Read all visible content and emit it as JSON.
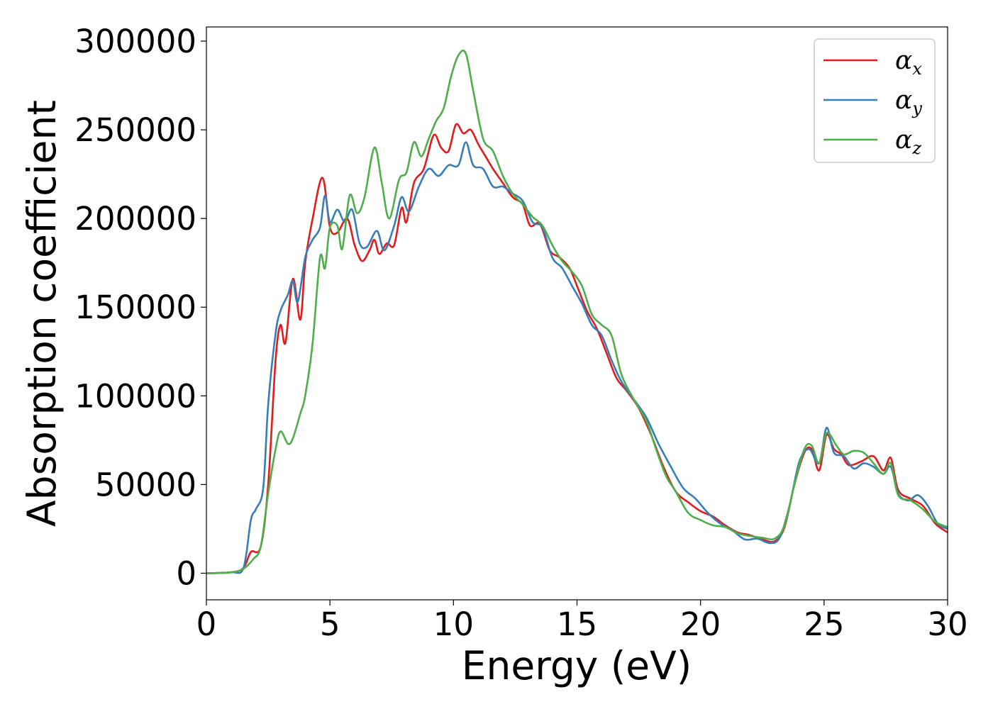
{
  "chart_data": {
    "type": "line",
    "title": "",
    "xlabel": "Energy (eV)",
    "ylabel": "Absorption coefficient",
    "xlim": [
      0,
      30
    ],
    "ylim": [
      -15000,
      308000
    ],
    "xticks": [
      0,
      5,
      10,
      15,
      20,
      25,
      30
    ],
    "yticks": [
      0,
      50000,
      100000,
      150000,
      200000,
      250000,
      300000
    ],
    "xtick_labels": [
      "0",
      "5",
      "10",
      "15",
      "20",
      "25",
      "30"
    ],
    "ytick_labels": [
      "0",
      "50000",
      "100000",
      "150000",
      "200000",
      "250000",
      "300000"
    ],
    "grid": false,
    "legend": {
      "position": "top-right"
    },
    "series": [
      {
        "name": "αx",
        "symbol": "α",
        "subscript": "x",
        "color": "#e41a1c",
        "points": [
          [
            0,
            0
          ],
          [
            1,
            500
          ],
          [
            1.5,
            3000
          ],
          [
            1.8,
            12000
          ],
          [
            2.2,
            15000
          ],
          [
            2.5,
            50000
          ],
          [
            2.8,
            120000
          ],
          [
            3.0,
            140000
          ],
          [
            3.2,
            130000
          ],
          [
            3.5,
            166000
          ],
          [
            3.8,
            143000
          ],
          [
            4.0,
            175000
          ],
          [
            4.3,
            200000
          ],
          [
            4.7,
            223000
          ],
          [
            5.0,
            195000
          ],
          [
            5.3,
            192000
          ],
          [
            5.7,
            200000
          ],
          [
            6.0,
            185000
          ],
          [
            6.3,
            176000
          ],
          [
            6.6,
            182000
          ],
          [
            6.8,
            188000
          ],
          [
            7.0,
            180000
          ],
          [
            7.3,
            186000
          ],
          [
            7.6,
            185000
          ],
          [
            7.9,
            206000
          ],
          [
            8.1,
            198000
          ],
          [
            8.4,
            220000
          ],
          [
            8.8,
            228000
          ],
          [
            9.2,
            247000
          ],
          [
            9.5,
            240000
          ],
          [
            9.8,
            238000
          ],
          [
            10.1,
            253000
          ],
          [
            10.4,
            248000
          ],
          [
            10.7,
            250000
          ],
          [
            11.0,
            242000
          ],
          [
            11.3,
            235000
          ],
          [
            11.6,
            228000
          ],
          [
            12.0,
            220000
          ],
          [
            12.4,
            212000
          ],
          [
            12.8,
            208000
          ],
          [
            13.1,
            196000
          ],
          [
            13.5,
            197000
          ],
          [
            13.9,
            182000
          ],
          [
            14.3,
            178000
          ],
          [
            14.7,
            172000
          ],
          [
            15.0,
            162000
          ],
          [
            15.4,
            148000
          ],
          [
            15.8,
            138000
          ],
          [
            16.2,
            124000
          ],
          [
            16.6,
            110000
          ],
          [
            17.0,
            103000
          ],
          [
            17.5,
            93000
          ],
          [
            18.0,
            78000
          ],
          [
            18.5,
            60000
          ],
          [
            19.0,
            46000
          ],
          [
            19.5,
            40000
          ],
          [
            20.0,
            35000
          ],
          [
            20.5,
            32000
          ],
          [
            21.0,
            27000
          ],
          [
            21.5,
            23000
          ],
          [
            22.0,
            21500
          ],
          [
            22.5,
            19000
          ],
          [
            23.0,
            18000
          ],
          [
            23.4,
            26000
          ],
          [
            23.8,
            50000
          ],
          [
            24.2,
            68000
          ],
          [
            24.5,
            70000
          ],
          [
            24.8,
            58000
          ],
          [
            25.1,
            78000
          ],
          [
            25.4,
            70000
          ],
          [
            25.7,
            67000
          ],
          [
            26.0,
            61000
          ],
          [
            26.5,
            63000
          ],
          [
            27.0,
            66000
          ],
          [
            27.4,
            58000
          ],
          [
            27.7,
            65000
          ],
          [
            28.0,
            47000
          ],
          [
            28.5,
            42000
          ],
          [
            29.0,
            38000
          ],
          [
            29.5,
            28000
          ],
          [
            30,
            23000
          ]
        ]
      },
      {
        "name": "αy",
        "symbol": "α",
        "subscript": "y",
        "color": "#377eb8",
        "points": [
          [
            0,
            0
          ],
          [
            1,
            500
          ],
          [
            1.5,
            3000
          ],
          [
            1.8,
            30000
          ],
          [
            2.0,
            36000
          ],
          [
            2.3,
            48000
          ],
          [
            2.5,
            95000
          ],
          [
            2.8,
            135000
          ],
          [
            3.0,
            148000
          ],
          [
            3.3,
            157000
          ],
          [
            3.5,
            165000
          ],
          [
            3.7,
            153000
          ],
          [
            4.0,
            178000
          ],
          [
            4.3,
            188000
          ],
          [
            4.6,
            195000
          ],
          [
            4.8,
            213000
          ],
          [
            5.0,
            198000
          ],
          [
            5.3,
            205000
          ],
          [
            5.6,
            198000
          ],
          [
            5.9,
            205000
          ],
          [
            6.2,
            186000
          ],
          [
            6.5,
            184000
          ],
          [
            6.9,
            193000
          ],
          [
            7.2,
            182000
          ],
          [
            7.6,
            196000
          ],
          [
            7.9,
            212000
          ],
          [
            8.2,
            204000
          ],
          [
            8.6,
            218000
          ],
          [
            9.0,
            228000
          ],
          [
            9.4,
            224000
          ],
          [
            9.8,
            230000
          ],
          [
            10.2,
            230000
          ],
          [
            10.5,
            243000
          ],
          [
            10.8,
            230000
          ],
          [
            11.2,
            228000
          ],
          [
            11.6,
            218000
          ],
          [
            12.0,
            218000
          ],
          [
            12.4,
            214000
          ],
          [
            12.8,
            210000
          ],
          [
            13.2,
            198000
          ],
          [
            13.6,
            195000
          ],
          [
            14.0,
            178000
          ],
          [
            14.4,
            172000
          ],
          [
            14.8,
            162000
          ],
          [
            15.2,
            152000
          ],
          [
            15.6,
            140000
          ],
          [
            16.0,
            134000
          ],
          [
            16.4,
            120000
          ],
          [
            16.8,
            108000
          ],
          [
            17.3,
            98000
          ],
          [
            17.8,
            88000
          ],
          [
            18.3,
            73000
          ],
          [
            18.8,
            60000
          ],
          [
            19.3,
            48000
          ],
          [
            19.8,
            42000
          ],
          [
            20.3,
            34000
          ],
          [
            20.8,
            28000
          ],
          [
            21.3,
            24000
          ],
          [
            21.8,
            19000
          ],
          [
            22.3,
            19500
          ],
          [
            22.8,
            17000
          ],
          [
            23.2,
            20000
          ],
          [
            23.6,
            38000
          ],
          [
            24.0,
            63000
          ],
          [
            24.4,
            70000
          ],
          [
            24.8,
            62000
          ],
          [
            25.1,
            82000
          ],
          [
            25.4,
            68000
          ],
          [
            25.8,
            66000
          ],
          [
            26.2,
            59000
          ],
          [
            26.6,
            62000
          ],
          [
            27.0,
            60000
          ],
          [
            27.4,
            56000
          ],
          [
            27.7,
            60000
          ],
          [
            28.0,
            45000
          ],
          [
            28.4,
            41000
          ],
          [
            28.8,
            44000
          ],
          [
            29.2,
            38000
          ],
          [
            29.6,
            28000
          ],
          [
            30,
            25000
          ]
        ]
      },
      {
        "name": "αz",
        "symbol": "α",
        "subscript": "z",
        "color": "#4daf4a",
        "points": [
          [
            0,
            0
          ],
          [
            1,
            500
          ],
          [
            1.5,
            2500
          ],
          [
            1.9,
            8000
          ],
          [
            2.2,
            15000
          ],
          [
            2.5,
            45000
          ],
          [
            2.8,
            70000
          ],
          [
            3.0,
            80000
          ],
          [
            3.3,
            73000
          ],
          [
            3.5,
            76000
          ],
          [
            3.8,
            90000
          ],
          [
            4.0,
            100000
          ],
          [
            4.3,
            130000
          ],
          [
            4.6,
            178000
          ],
          [
            4.8,
            172000
          ],
          [
            5.0,
            195000
          ],
          [
            5.3,
            196000
          ],
          [
            5.5,
            183000
          ],
          [
            5.8,
            213000
          ],
          [
            6.1,
            203000
          ],
          [
            6.4,
            212000
          ],
          [
            6.8,
            240000
          ],
          [
            7.1,
            220000
          ],
          [
            7.4,
            200000
          ],
          [
            7.8,
            222000
          ],
          [
            8.1,
            226000
          ],
          [
            8.4,
            243000
          ],
          [
            8.7,
            235000
          ],
          [
            9.0,
            245000
          ],
          [
            9.3,
            255000
          ],
          [
            9.6,
            262000
          ],
          [
            9.9,
            280000
          ],
          [
            10.2,
            292000
          ],
          [
            10.5,
            293000
          ],
          [
            10.8,
            272000
          ],
          [
            11.2,
            245000
          ],
          [
            11.6,
            238000
          ],
          [
            12.0,
            224000
          ],
          [
            12.4,
            214000
          ],
          [
            12.8,
            208000
          ],
          [
            13.2,
            201000
          ],
          [
            13.6,
            196000
          ],
          [
            14.0,
            185000
          ],
          [
            14.4,
            176000
          ],
          [
            14.8,
            170000
          ],
          [
            15.2,
            162000
          ],
          [
            15.6,
            146000
          ],
          [
            16.0,
            140000
          ],
          [
            16.4,
            134000
          ],
          [
            16.8,
            112000
          ],
          [
            17.3,
            98000
          ],
          [
            17.8,
            86000
          ],
          [
            18.2,
            70000
          ],
          [
            18.6,
            55000
          ],
          [
            19.0,
            46000
          ],
          [
            19.5,
            34000
          ],
          [
            20.0,
            30000
          ],
          [
            20.5,
            27000
          ],
          [
            21.0,
            26000
          ],
          [
            21.5,
            22500
          ],
          [
            22.0,
            21000
          ],
          [
            22.5,
            20000
          ],
          [
            23.0,
            19500
          ],
          [
            23.4,
            27000
          ],
          [
            23.8,
            50000
          ],
          [
            24.2,
            70000
          ],
          [
            24.5,
            72000
          ],
          [
            24.8,
            62000
          ],
          [
            25.1,
            79000
          ],
          [
            25.5,
            72000
          ],
          [
            25.8,
            67000
          ],
          [
            26.2,
            69000
          ],
          [
            26.6,
            68000
          ],
          [
            27.0,
            62000
          ],
          [
            27.4,
            56000
          ],
          [
            27.7,
            62000
          ],
          [
            28.0,
            44000
          ],
          [
            28.5,
            41000
          ],
          [
            29.0,
            36000
          ],
          [
            29.5,
            29000
          ],
          [
            30,
            26000
          ]
        ]
      }
    ]
  }
}
